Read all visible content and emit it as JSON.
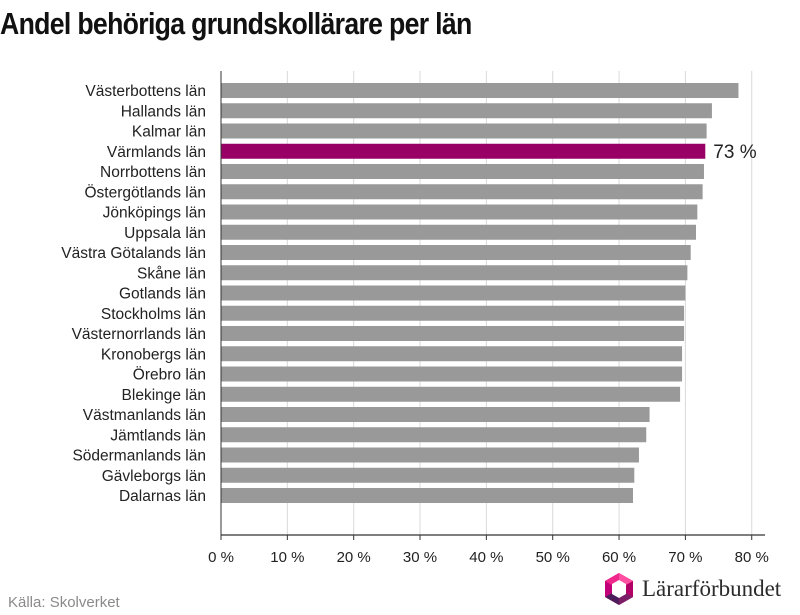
{
  "chart_data": {
    "type": "bar",
    "orientation": "horizontal",
    "title": "Andel behöriga grundskollärare per län",
    "categories": [
      "Västerbottens län",
      "Hallands län",
      "Kalmar län",
      "Värmlands län",
      "Norrbottens län",
      "Östergötlands län",
      "Jönköpings län",
      "Uppsala län",
      "Västra Götalands län",
      "Skåne län",
      "Gotlands län",
      "Stockholms län",
      "Västernorrlands län",
      "Kronobergs län",
      "Örebro län",
      "Blekinge län",
      "Västmanlands län",
      "Jämtlands län",
      "Södermanlands län",
      "Gävleborgs län",
      "Dalarnas län"
    ],
    "values": [
      78,
      74,
      73.2,
      73,
      72.8,
      72.6,
      71.8,
      71.6,
      70.8,
      70.3,
      70,
      69.8,
      69.8,
      69.5,
      69.5,
      69.2,
      64.6,
      64.1,
      63,
      62.3,
      62.1
    ],
    "highlight_index": 3,
    "highlight_label": "73 %",
    "xlim": [
      0,
      82
    ],
    "xticks": [
      0,
      10,
      20,
      30,
      40,
      50,
      60,
      70,
      80
    ],
    "xtick_labels": [
      "0 %",
      "10 %",
      "20 %",
      "30 %",
      "40 %",
      "50 %",
      "60 %",
      "70 %",
      "80 %"
    ],
    "xlabel": "",
    "ylabel": "",
    "grid": true,
    "colors": {
      "bar": "#999999",
      "highlight": "#990066",
      "grid": "#d9d9d9",
      "axis": "#333333"
    }
  },
  "source": "Källa: Skolverket",
  "logo": {
    "text": "Lärarförbundet",
    "icon": "lararforbundet-logo-icon"
  }
}
